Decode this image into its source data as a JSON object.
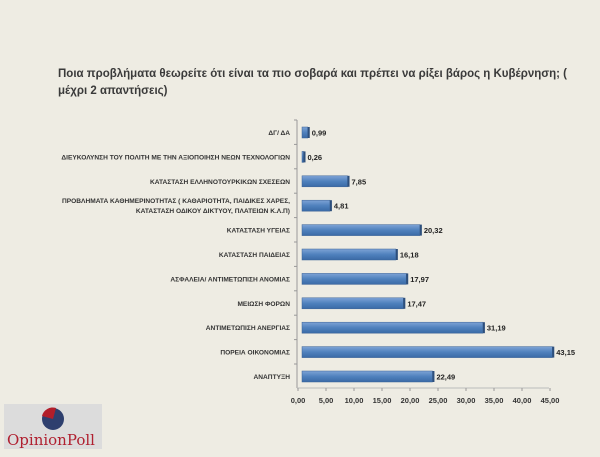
{
  "chart_data": {
    "type": "bar",
    "orientation": "horizontal",
    "title": "Ποια προβλήματα θεωρείτε ότι είναι τα πιο σοβαρά και πρέπει να ρίξει βάρος η Κυβέρνηση; ( μέχρι 2 απαντήσεις)",
    "categories": [
      "ΔΓ/ ΔΑ",
      "ΔΙΕΥΚΟΛΥΝΣΗ ΤΟΥ ΠΟΛΙΤΗ ΜΕ ΤΗΝ ΑΞΙΟΠΟΙΗΣΗ ΝΕΩΝ ΤΕΧΝΟΛΟΓΙΩΝ",
      "ΚΑΤΑΣΤΑΣΗ ΕΛΛΗΝΟΤΟΥΡΚΙΚΩΝ ΣΧΕΣΕΩΝ",
      "ΠΡΟΒΛΗΜΑΤΑ ΚΑΘΗΜΕΡΙΝΟΤΗΤΑΣ ( ΚΑΘΑΡΙΟΤΗΤΑ, ΠΑΙΔΙΚΕΣ ΧΑΡΕΣ,|ΚΑΤΑΣΤΑΣΗ ΟΔΙΚΟΥ ΔΙΚΤΥΟΥ, ΠΛΑΤΕΙΩΝ Κ.Λ.Π)",
      "ΚΑΤΑΣΤΑΣΗ ΥΓΕΙΑΣ",
      "ΚΑΤΑΣΤΑΣΗ ΠΑΙΔΕΙΑΣ",
      "ΑΣΦΑΛΕΙΑ/ ΑΝΤΙΜΕΤΩΠΙΣΗ ΑΝΟΜΙΑΣ",
      "ΜΕΙΩΣΗ ΦΟΡΩΝ",
      "ΑΝΤΙΜΕΤΩΠΙΣΗ ΑΝΕΡΓΙΑΣ",
      "ΠΟΡΕΙΑ ΟΙΚΟΝΟΜΙΑΣ",
      "ΑΝΑΠΤΥΞΗ"
    ],
    "values": [
      0.99,
      0.26,
      7.85,
      4.81,
      20.32,
      16.18,
      17.97,
      17.47,
      31.19,
      43.15,
      22.49
    ],
    "value_labels": [
      "0,99",
      "0,26",
      "7,85",
      "4,81",
      "20,32",
      "16,18",
      "17,97",
      "17,47",
      "31,19",
      "43,15",
      "22,49"
    ],
    "xlim": [
      0,
      45
    ],
    "xticks": [
      "0,00",
      "5,00",
      "10,00",
      "15,00",
      "20,00",
      "25,00",
      "30,00",
      "35,00",
      "40,00",
      "45,00"
    ],
    "grid": false,
    "bar_color": "#4f81bd"
  },
  "logo": {
    "text": "OpinionPoll"
  }
}
